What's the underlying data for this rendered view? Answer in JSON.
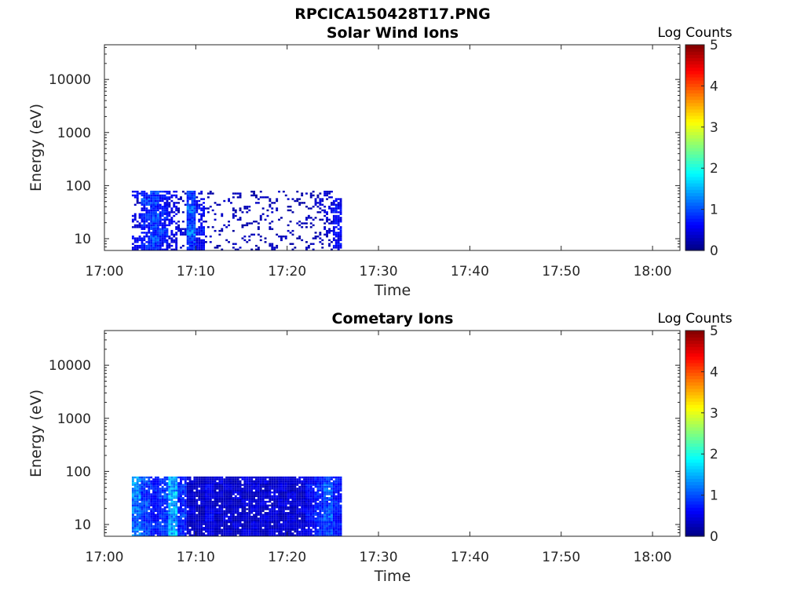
{
  "figure_title": "RPCICA150428T17.PNG",
  "chart_data": [
    {
      "type": "heatmap",
      "title": "Solar Wind Ions",
      "xlabel": "Time",
      "ylabel": "Energy (eV)",
      "x_ticks": [
        "17:00",
        "17:10",
        "17:20",
        "17:30",
        "17:40",
        "17:50",
        "18:00"
      ],
      "x_tick_minutes": [
        0,
        10,
        20,
        30,
        40,
        50,
        60
      ],
      "xlim_minutes": [
        0,
        63
      ],
      "yscale": "log",
      "y_ticks": [
        "10",
        "100",
        "1000",
        "10000"
      ],
      "y_tick_values": [
        10,
        100,
        1000,
        10000
      ],
      "ylim": [
        6,
        45000
      ],
      "data_time_range": [
        "17:03",
        "17:26"
      ],
      "data_energy_range": [
        6,
        80
      ],
      "colorbar": {
        "label": "Log Counts",
        "ticks": [
          "0",
          "1",
          "2",
          "3",
          "4",
          "5"
        ],
        "range": [
          0,
          5
        ],
        "colormap": "jet"
      },
      "pattern": "sparse",
      "columns": [
        [
          0.5,
          0.6,
          0,
          0.4,
          0.5,
          0,
          0.3,
          0.6
        ],
        [
          0.8,
          0.7,
          0.6,
          0.7,
          0.8,
          0.6,
          0.9,
          0.7
        ],
        [
          0.9,
          1.0,
          0.8,
          0.9,
          1.0,
          0.8,
          0.9,
          0.9
        ],
        [
          0.6,
          0.7,
          0.9,
          0.6,
          0.7,
          0.8,
          0.6,
          0.7
        ],
        [
          0.5,
          0.4,
          0.5,
          0.6,
          0.5,
          0.5,
          0.4,
          0.5
        ],
        [
          0.3,
          0,
          0.4,
          0.3,
          0,
          0.2,
          0.3,
          0.2
        ],
        [
          0.8,
          0.9,
          1.2,
          1.0,
          0.9,
          1.1,
          0.8,
          0.9
        ],
        [
          0.6,
          0.5,
          0.7,
          0.6,
          0.5,
          0.6,
          0.5,
          0.4
        ],
        [
          0,
          0.3,
          0,
          0.2,
          0,
          0.3,
          0,
          0.2
        ],
        [
          0.2,
          0,
          0.3,
          0,
          0.3,
          0,
          0.2,
          0
        ],
        [
          0,
          0.2,
          0,
          0.3,
          0,
          0,
          0.3,
          0
        ],
        [
          0.3,
          0,
          0.2,
          0,
          0.3,
          0.2,
          0,
          0.3
        ],
        [
          0,
          0.3,
          0,
          0.2,
          0,
          0.3,
          0,
          0
        ],
        [
          0.2,
          0,
          0.3,
          0.2,
          0,
          0,
          0.3,
          0.2
        ],
        [
          0,
          0.2,
          0,
          0,
          0.3,
          0.2,
          0,
          0.3
        ],
        [
          0.3,
          0,
          0.2,
          0.3,
          0,
          0.3,
          0.2,
          0
        ],
        [
          0,
          0.3,
          0,
          0,
          0.2,
          0,
          0,
          0.3
        ],
        [
          0.2,
          0,
          0.3,
          0.2,
          0,
          0.2,
          0.3,
          0
        ],
        [
          0,
          0.2,
          0,
          0.3,
          0,
          0,
          0.2,
          0.2
        ],
        [
          0.3,
          0.2,
          0,
          0.2,
          0.3,
          0.2,
          0,
          0.3
        ],
        [
          0.2,
          0.3,
          0.2,
          0,
          0.2,
          0.3,
          0.4,
          0.2
        ],
        [
          0.3,
          0.2,
          0.4,
          0.3,
          0.4,
          0.5,
          0.3,
          0.4
        ],
        [
          0.6,
          0.5,
          0.7,
          0.6,
          0.6,
          0.7,
          0.5,
          0
        ]
      ]
    },
    {
      "type": "heatmap",
      "title": "Cometary Ions",
      "xlabel": "Time",
      "ylabel": "Energy (eV)",
      "x_ticks": [
        "17:00",
        "17:10",
        "17:20",
        "17:30",
        "17:40",
        "17:50",
        "18:00"
      ],
      "x_tick_minutes": [
        0,
        10,
        20,
        30,
        40,
        50,
        60
      ],
      "xlim_minutes": [
        0,
        63
      ],
      "yscale": "log",
      "y_ticks": [
        "10",
        "100",
        "1000",
        "10000"
      ],
      "y_tick_values": [
        10,
        100,
        1000,
        10000
      ],
      "ylim": [
        6,
        45000
      ],
      "data_time_range": [
        "17:03",
        "17:26"
      ],
      "data_energy_range": [
        6,
        80
      ],
      "colorbar": {
        "label": "Log Counts",
        "ticks": [
          "0",
          "1",
          "2",
          "3",
          "4",
          "5"
        ],
        "range": [
          0,
          5
        ],
        "colormap": "jet"
      },
      "pattern": "dense",
      "columns": [
        [
          1.3,
          1.1,
          1.0,
          1.2,
          1.1,
          1.3,
          1.2,
          1.4
        ],
        [
          1.0,
          0.9,
          0.8,
          0.9,
          1.0,
          0.8,
          0.9,
          1.0
        ],
        [
          0.7,
          0.8,
          0.6,
          0.7,
          0.6,
          0.7,
          0.8,
          0.7
        ],
        [
          0.9,
          1.0,
          0.8,
          0.9,
          0.8,
          1.0,
          0.9,
          0.8
        ],
        [
          1.5,
          1.4,
          1.3,
          1.5,
          1.4,
          1.6,
          1.4,
          1.5
        ],
        [
          0.8,
          0.7,
          0.9,
          0.8,
          0.7,
          0.8,
          0.9,
          0.7
        ],
        [
          0.4,
          0.3,
          0.4,
          0.5,
          0.3,
          0.4,
          0.3,
          0.4
        ],
        [
          0.3,
          0.4,
          0.3,
          0.2,
          0.4,
          0.3,
          0.4,
          0.3
        ],
        [
          0.5,
          0.4,
          0.6,
          0.5,
          0.4,
          0.5,
          0.6,
          0.4
        ],
        [
          0.3,
          0.4,
          0.3,
          0.5,
          0.3,
          0.4,
          0.3,
          0.5
        ],
        [
          0.4,
          0.3,
          0.5,
          0.3,
          0.4,
          0.3,
          0.5,
          0.3
        ],
        [
          0.3,
          0.5,
          0.3,
          0.4,
          0.3,
          0.5,
          0.4,
          0.3
        ],
        [
          0.5,
          0.3,
          0.4,
          0.3,
          0.5,
          0.3,
          0.4,
          0.5
        ],
        [
          0.4,
          0.5,
          0.3,
          0.5,
          0.4,
          0.3,
          0.5,
          0.4
        ],
        [
          0.3,
          0.4,
          0.5,
          0.3,
          0.5,
          0.4,
          0.3,
          0.5
        ],
        [
          0.5,
          0.3,
          0.4,
          0.5,
          0.3,
          0.5,
          0.4,
          0.3
        ],
        [
          0.4,
          0.5,
          0.3,
          0.4,
          0.5,
          0.3,
          0.5,
          0.4
        ],
        [
          0.3,
          0.4,
          0.5,
          0.3,
          0.4,
          0.5,
          0.3,
          0.4
        ],
        [
          0.5,
          0.4,
          0.3,
          0.5,
          0.4,
          0.3,
          0.4,
          0.5
        ],
        [
          0.6,
          0.5,
          0.7,
          0.6,
          0.5,
          0.6,
          0.7,
          0.5
        ],
        [
          0.8,
          0.7,
          0.9,
          0.8,
          0.7,
          0.8,
          0.9,
          0.7
        ],
        [
          1.0,
          0.9,
          1.1,
          1.0,
          0.9,
          1.0,
          1.1,
          0.9
        ],
        [
          0.7,
          0.8,
          0.6,
          0.7,
          0.8,
          0.6,
          0.7,
          0.8
        ]
      ]
    }
  ]
}
